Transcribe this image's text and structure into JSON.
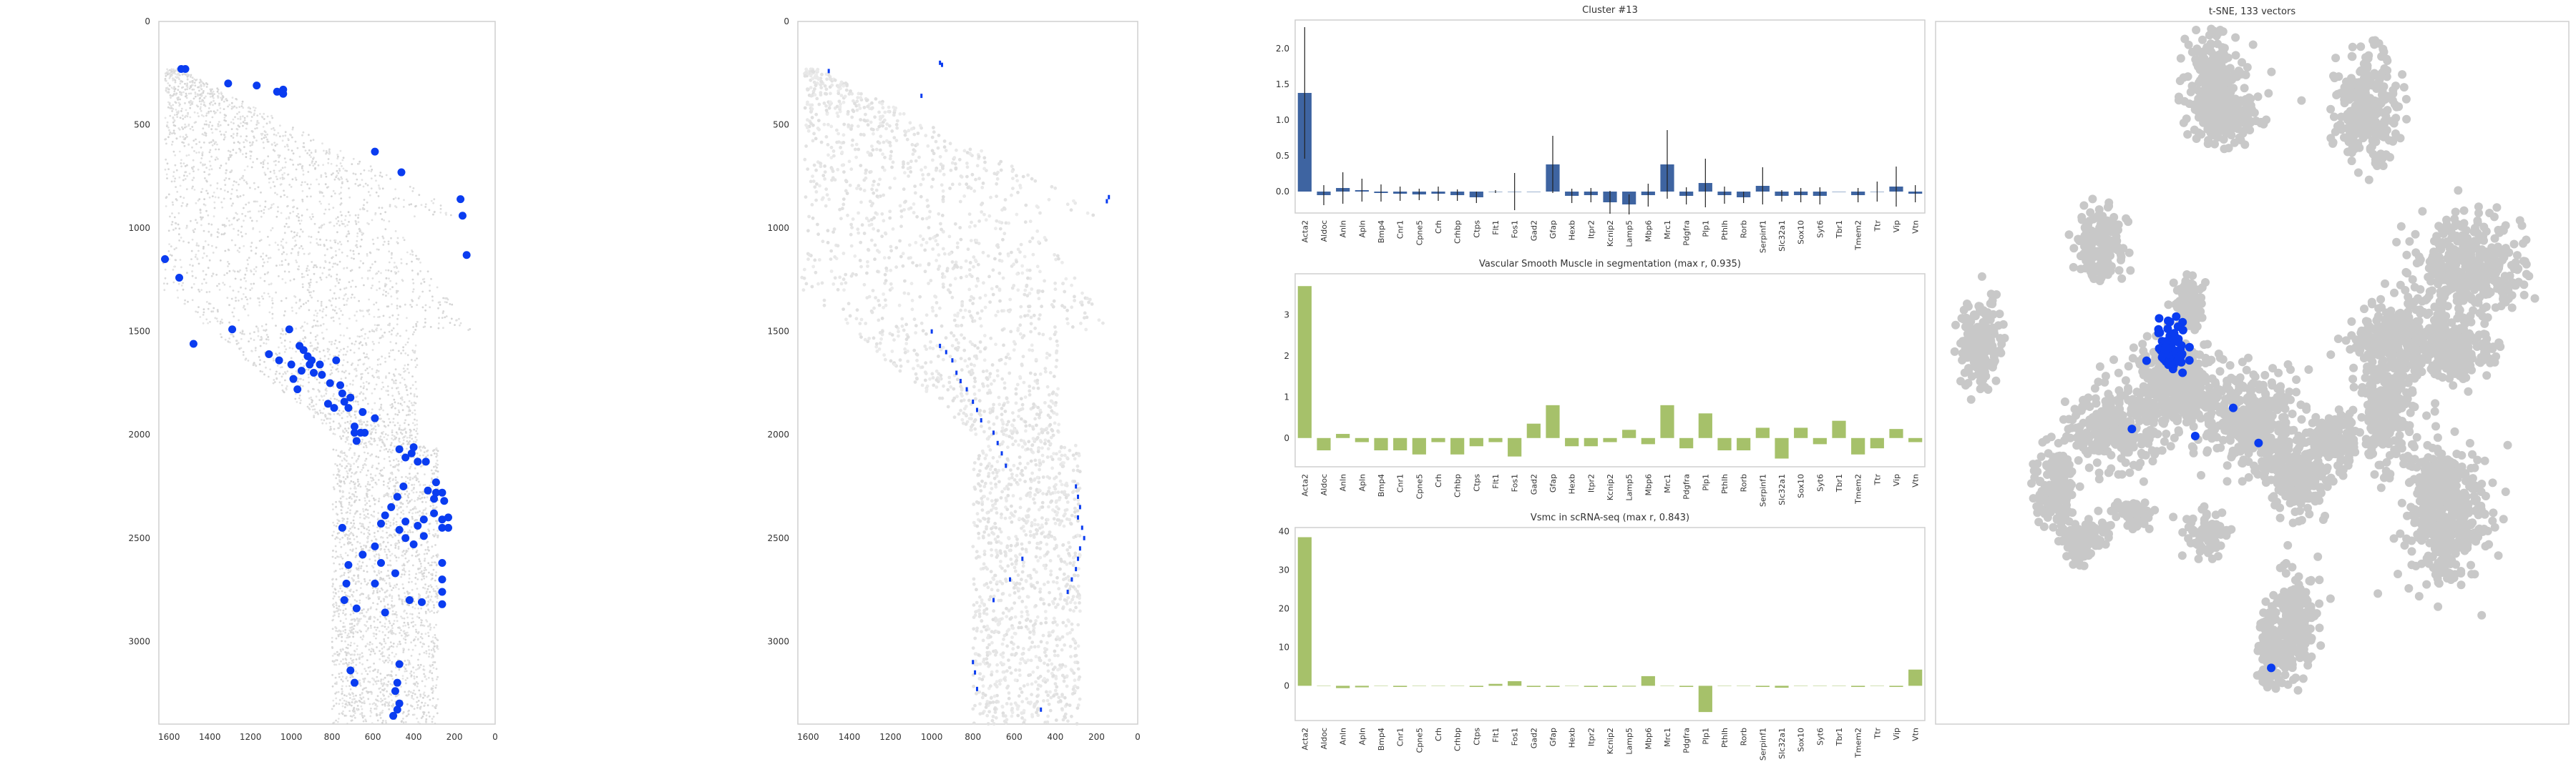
{
  "colors": {
    "highlight": "#0a3cf0",
    "bar_blue": "#3e64a1",
    "bar_green": "#a6c16a",
    "grey_point": "#c8c8c8",
    "tissue_grey": "#e2e2e2"
  },
  "chart_data": [
    {
      "id": "tissue_spots",
      "type": "scatter",
      "title": "",
      "xlim": [
        1650,
        0
      ],
      "ylim": [
        3400,
        0
      ],
      "xticks": [
        1600,
        1400,
        1200,
        1000,
        800,
        600,
        400,
        200,
        0
      ],
      "yticks": [
        0,
        500,
        1000,
        1500,
        2000,
        2500,
        3000
      ],
      "points": [
        [
          1540,
          230
        ],
        [
          1520,
          230
        ],
        [
          1310,
          300
        ],
        [
          1170,
          310
        ],
        [
          1070,
          340
        ],
        [
          1040,
          330
        ],
        [
          1040,
          350
        ],
        [
          590,
          630
        ],
        [
          460,
          730
        ],
        [
          170,
          860
        ],
        [
          160,
          940
        ],
        [
          140,
          1130
        ],
        [
          1620,
          1150
        ],
        [
          1550,
          1240
        ],
        [
          1480,
          1560
        ],
        [
          1290,
          1490
        ],
        [
          1010,
          1490
        ],
        [
          1110,
          1610
        ],
        [
          1060,
          1640
        ],
        [
          960,
          1570
        ],
        [
          940,
          1590
        ],
        [
          920,
          1620
        ],
        [
          900,
          1640
        ],
        [
          910,
          1660
        ],
        [
          890,
          1700
        ],
        [
          860,
          1660
        ],
        [
          950,
          1690
        ],
        [
          780,
          1640
        ],
        [
          1000,
          1660
        ],
        [
          990,
          1730
        ],
        [
          970,
          1780
        ],
        [
          850,
          1710
        ],
        [
          810,
          1750
        ],
        [
          760,
          1760
        ],
        [
          750,
          1800
        ],
        [
          740,
          1840
        ],
        [
          820,
          1850
        ],
        [
          790,
          1870
        ],
        [
          710,
          1820
        ],
        [
          720,
          1870
        ],
        [
          650,
          1890
        ],
        [
          590,
          1920
        ],
        [
          690,
          1960
        ],
        [
          690,
          1990
        ],
        [
          660,
          1990
        ],
        [
          640,
          1990
        ],
        [
          680,
          2030
        ],
        [
          470,
          2070
        ],
        [
          440,
          2110
        ],
        [
          400,
          2060
        ],
        [
          410,
          2090
        ],
        [
          380,
          2130
        ],
        [
          340,
          2130
        ],
        [
          290,
          2230
        ],
        [
          290,
          2280
        ],
        [
          330,
          2270
        ],
        [
          300,
          2310
        ],
        [
          260,
          2280
        ],
        [
          250,
          2320
        ],
        [
          300,
          2380
        ],
        [
          260,
          2410
        ],
        [
          260,
          2450
        ],
        [
          230,
          2450
        ],
        [
          230,
          2400
        ],
        [
          350,
          2410
        ],
        [
          380,
          2440
        ],
        [
          350,
          2490
        ],
        [
          450,
          2250
        ],
        [
          480,
          2300
        ],
        [
          510,
          2350
        ],
        [
          540,
          2390
        ],
        [
          560,
          2430
        ],
        [
          440,
          2420
        ],
        [
          470,
          2460
        ],
        [
          440,
          2500
        ],
        [
          400,
          2530
        ],
        [
          750,
          2450
        ],
        [
          590,
          2540
        ],
        [
          260,
          2620
        ],
        [
          260,
          2700
        ],
        [
          260,
          2760
        ],
        [
          260,
          2820
        ],
        [
          360,
          2810
        ],
        [
          420,
          2800
        ],
        [
          490,
          2670
        ],
        [
          560,
          2620
        ],
        [
          590,
          2720
        ],
        [
          650,
          2580
        ],
        [
          720,
          2630
        ],
        [
          730,
          2720
        ],
        [
          740,
          2800
        ],
        [
          540,
          2860
        ],
        [
          680,
          2840
        ],
        [
          710,
          3140
        ],
        [
          690,
          3200
        ],
        [
          470,
          3110
        ],
        [
          480,
          3200
        ],
        [
          490,
          3240
        ],
        [
          470,
          3300
        ],
        [
          480,
          3330
        ],
        [
          500,
          3360
        ]
      ]
    },
    {
      "id": "segmentation_map",
      "type": "scatter",
      "title": "",
      "xlim": [
        1650,
        0
      ],
      "ylim": [
        3400,
        0
      ],
      "xticks": [
        1600,
        1400,
        1200,
        1000,
        800,
        600,
        400,
        200,
        0
      ],
      "yticks": [
        0,
        500,
        1000,
        1500,
        2000,
        2500,
        3000
      ],
      "points": [
        [
          1500,
          240
        ],
        [
          960,
          200
        ],
        [
          950,
          210
        ],
        [
          1050,
          360
        ],
        [
          140,
          850
        ],
        [
          150,
          870
        ],
        [
          1000,
          1500
        ],
        [
          960,
          1570
        ],
        [
          930,
          1600
        ],
        [
          900,
          1640
        ],
        [
          880,
          1700
        ],
        [
          860,
          1740
        ],
        [
          830,
          1780
        ],
        [
          800,
          1840
        ],
        [
          780,
          1880
        ],
        [
          760,
          1930
        ],
        [
          700,
          1990
        ],
        [
          680,
          2040
        ],
        [
          660,
          2090
        ],
        [
          640,
          2150
        ],
        [
          300,
          2250
        ],
        [
          290,
          2300
        ],
        [
          280,
          2350
        ],
        [
          290,
          2400
        ],
        [
          270,
          2450
        ],
        [
          260,
          2500
        ],
        [
          280,
          2550
        ],
        [
          290,
          2600
        ],
        [
          300,
          2650
        ],
        [
          320,
          2700
        ],
        [
          340,
          2760
        ],
        [
          560,
          2600
        ],
        [
          620,
          2700
        ],
        [
          700,
          2800
        ],
        [
          800,
          3100
        ],
        [
          790,
          3150
        ],
        [
          780,
          3230
        ],
        [
          470,
          3330
        ]
      ]
    },
    {
      "id": "cluster_profile",
      "type": "bar",
      "title": "Cluster #13",
      "categories": [
        "Acta2",
        "Aldoc",
        "Anln",
        "Apln",
        "Bmp4",
        "Cnr1",
        "Cpne5",
        "Crh",
        "Crhbp",
        "Ctps",
        "Flt1",
        "Fos1",
        "Gad2",
        "Gfap",
        "Hexb",
        "Itpr2",
        "Kcnip2",
        "Lamp5",
        "Mbp6",
        "Mrc1",
        "Pdgfra",
        "Plp1",
        "Pthlh",
        "Rorb",
        "Serpinf1",
        "Slc32a1",
        "Sox10",
        "Syt6",
        "Tbr1",
        "Tmem2",
        "Ttr",
        "Vip",
        "Vtn"
      ],
      "values": [
        1.38,
        -0.05,
        0.05,
        0.02,
        -0.02,
        -0.03,
        -0.04,
        -0.03,
        -0.05,
        -0.08,
        0.0,
        0.0,
        0.0,
        0.38,
        -0.06,
        -0.05,
        -0.15,
        -0.18,
        -0.05,
        0.38,
        -0.06,
        0.12,
        -0.05,
        -0.08,
        0.08,
        -0.06,
        -0.05,
        -0.06,
        0.0,
        -0.05,
        0.0,
        0.07,
        -0.03
      ],
      "errors": [
        0.92,
        0.14,
        0.22,
        0.16,
        0.12,
        0.1,
        0.08,
        0.1,
        0.08,
        0.08,
        0.02,
        0.26,
        0.0,
        0.4,
        0.1,
        0.1,
        0.16,
        0.14,
        0.16,
        0.48,
        0.12,
        0.34,
        0.12,
        0.08,
        0.26,
        0.08,
        0.1,
        0.12,
        0.0,
        0.1,
        0.14,
        0.28,
        0.12
      ],
      "ylim": [
        -0.3,
        2.4
      ],
      "yticks": [
        "-0.0",
        "0.5",
        "1.0",
        "1.5",
        "2.0"
      ],
      "ytick_values": [
        0.0,
        0.5,
        1.0,
        1.5,
        2.0
      ],
      "ytick_labels": [
        "0.0",
        "0.5",
        "1.0",
        "1.5",
        "2.0"
      ]
    },
    {
      "id": "vsm_segmentation",
      "type": "bar",
      "title": "Vascular Smooth Muscle in segmentation (max r, 0.935)",
      "categories": [
        "Acta2",
        "Aldoc",
        "Anln",
        "Apln",
        "Bmp4",
        "Cnr1",
        "Cpne5",
        "Crh",
        "Crhbp",
        "Ctps",
        "Flt1",
        "Fos1",
        "Gad2",
        "Gfap",
        "Hexb",
        "Itpr2",
        "Kcnip2",
        "Lamp5",
        "Mbp6",
        "Mrc1",
        "Pdgfra",
        "Plp1",
        "Pthlh",
        "Rorb",
        "Serpinf1",
        "Slc32a1",
        "Sox10",
        "Syt6",
        "Tbr1",
        "Tmem2",
        "Ttr",
        "Vip",
        "Vtn"
      ],
      "values": [
        3.7,
        -0.3,
        0.1,
        -0.1,
        -0.3,
        -0.3,
        -0.4,
        -0.1,
        -0.4,
        -0.2,
        -0.1,
        -0.45,
        0.35,
        0.8,
        -0.2,
        -0.2,
        -0.1,
        0.2,
        -0.15,
        0.8,
        -0.25,
        0.6,
        -0.3,
        -0.3,
        0.25,
        -0.5,
        0.25,
        -0.15,
        0.42,
        -0.4,
        -0.25,
        0.22,
        -0.1
      ],
      "ylim": [
        -0.7,
        4.0
      ],
      "ytick_values": [
        0,
        1,
        2,
        3
      ],
      "ytick_labels": [
        "0",
        "1",
        "2",
        "3"
      ]
    },
    {
      "id": "vsmc_scrnaseq",
      "type": "bar",
      "title": "Vsmc in scRNA-seq (max r, 0.843)",
      "categories": [
        "Acta2",
        "Aldoc",
        "Anln",
        "Apln",
        "Bmp4",
        "Cnr1",
        "Cpne5",
        "Crh",
        "Crhbp",
        "Ctps",
        "Flt1",
        "Fos1",
        "Gad2",
        "Gfap",
        "Hexb",
        "Itpr2",
        "Kcnip2",
        "Lamp5",
        "Mbp6",
        "Mrc1",
        "Pdgfra",
        "Plp1",
        "Pthlh",
        "Rorb",
        "Serpinf1",
        "Slc32a1",
        "Sox10",
        "Syt6",
        "Tbr1",
        "Tmem2",
        "Ttr",
        "Vip",
        "Vtn"
      ],
      "values": [
        38.5,
        0.0,
        -0.6,
        -0.4,
        0.0,
        -0.3,
        0.0,
        0.0,
        0.0,
        -0.3,
        0.5,
        1.2,
        -0.3,
        -0.3,
        0.0,
        -0.3,
        -0.3,
        -0.2,
        2.5,
        0.0,
        -0.3,
        -6.8,
        0.0,
        0.0,
        -0.3,
        -0.5,
        0.0,
        0.0,
        0.0,
        -0.3,
        0.0,
        -0.3,
        4.2
      ],
      "ylim": [
        -9,
        41
      ],
      "ytick_values": [
        0,
        10,
        20,
        30,
        40
      ],
      "ytick_labels": [
        "0",
        "10",
        "20",
        "30",
        "40"
      ]
    },
    {
      "id": "tsne",
      "type": "scatter",
      "title": "t-SNE, 133 vectors",
      "grey_clusters": [
        [
          0.44,
          0.09,
          0.035,
          0.06,
          260
        ],
        [
          0.46,
          0.13,
          0.05,
          0.035,
          200
        ],
        [
          0.68,
          0.12,
          0.045,
          0.07,
          260
        ],
        [
          0.26,
          0.32,
          0.035,
          0.045,
          160
        ],
        [
          0.07,
          0.46,
          0.03,
          0.06,
          160
        ],
        [
          0.84,
          0.35,
          0.08,
          0.06,
          400
        ],
        [
          0.74,
          0.45,
          0.07,
          0.05,
          300
        ],
        [
          0.71,
          0.54,
          0.04,
          0.08,
          300
        ],
        [
          0.83,
          0.47,
          0.05,
          0.04,
          160
        ],
        [
          0.38,
          0.52,
          0.07,
          0.055,
          380
        ],
        [
          0.28,
          0.58,
          0.06,
          0.05,
          260
        ],
        [
          0.5,
          0.57,
          0.07,
          0.06,
          360
        ],
        [
          0.57,
          0.65,
          0.04,
          0.045,
          180
        ],
        [
          0.63,
          0.6,
          0.03,
          0.04,
          120
        ],
        [
          0.4,
          0.4,
          0.02,
          0.03,
          120
        ],
        [
          0.19,
          0.66,
          0.03,
          0.06,
          150
        ],
        [
          0.22,
          0.74,
          0.02,
          0.03,
          60
        ],
        [
          0.31,
          0.7,
          0.025,
          0.02,
          60
        ],
        [
          0.43,
          0.73,
          0.03,
          0.03,
          80
        ],
        [
          0.81,
          0.71,
          0.06,
          0.09,
          360
        ],
        [
          0.79,
          0.65,
          0.03,
          0.03,
          120
        ],
        [
          0.56,
          0.86,
          0.035,
          0.07,
          260
        ],
        [
          0.53,
          0.9,
          0.02,
          0.04,
          100
        ],
        [
          0.25,
          0.73,
          0.02,
          0.02,
          40
        ]
      ],
      "highlight_cluster": [
        0.37,
        0.465,
        0.025,
        0.04,
        60
      ],
      "highlight_points": [
        [
          0.38,
          0.42
        ],
        [
          0.39,
          0.5
        ],
        [
          0.47,
          0.55
        ],
        [
          0.31,
          0.58
        ],
        [
          0.41,
          0.59
        ],
        [
          0.51,
          0.6
        ],
        [
          0.53,
          0.92
        ]
      ]
    }
  ]
}
